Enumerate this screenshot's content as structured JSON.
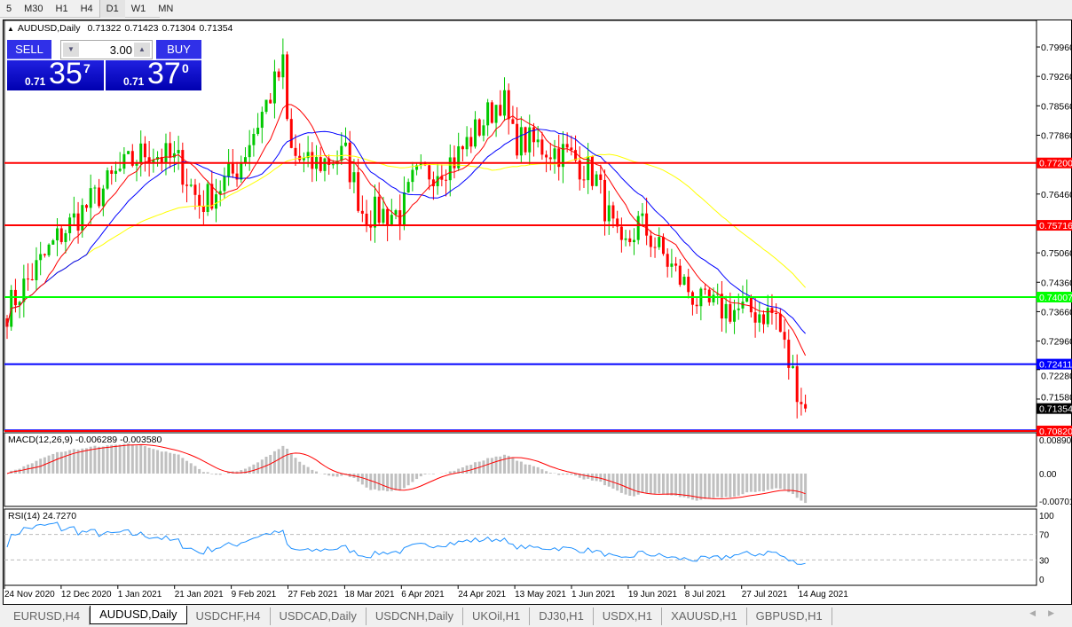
{
  "timeframes": [
    "5",
    "M30",
    "H1",
    "H4",
    "D1",
    "W1",
    "MN"
  ],
  "active_timeframe": "D1",
  "header": {
    "symbol": "AUDUSD,Daily",
    "open": "0.71322",
    "high": "0.71423",
    "low": "0.71304",
    "close": "0.71354"
  },
  "trade_panel": {
    "sell_label": "SELL",
    "buy_label": "BUY",
    "lot": "3.00",
    "sell_small": "0.71",
    "sell_big": "35",
    "sell_pip": "7",
    "buy_small": "0.71",
    "buy_big": "37",
    "buy_pip": "0"
  },
  "colors": {
    "bull": "#00c800",
    "bear": "#ff0000",
    "ma_fast": "#ff0000",
    "ma_mid": "#0000ff",
    "ma_slow": "#ffff00",
    "macd_hist": "#c0c0c0",
    "macd_signal": "#ff0000",
    "rsi": "#1e90ff"
  },
  "chart_data": {
    "type": "candlestick",
    "price_axis_ticks": [
      "0.79960",
      "0.79260",
      "0.78560",
      "0.77860",
      "0.76460",
      "0.75060",
      "0.74360",
      "0.73660",
      "0.72960",
      "0.72280",
      "0.71580"
    ],
    "ylim": [
      0.7082,
      0.7996
    ],
    "date_ticks": [
      "24 Nov 2020",
      "12 Dec 2020",
      "1 Jan 2021",
      "21 Jan 2021",
      "9 Feb 2021",
      "27 Feb 2021",
      "18 Mar 2021",
      "6 Apr 2021",
      "24 Apr 2021",
      "13 May 2021",
      "1 Jun 2021",
      "19 Jun 2021",
      "8 Jul 2021",
      "27 Jul 2021",
      "14 Aug 2021"
    ],
    "approx_close_path": [
      [
        "24 Nov 2020",
        0.737
      ],
      [
        "12 Dec 2020",
        0.755
      ],
      [
        "1 Jan 2021",
        0.77
      ],
      [
        "10 Jan 2021",
        0.775
      ],
      [
        "21 Jan 2021",
        0.772
      ],
      [
        "28 Jan 2021",
        0.762
      ],
      [
        "9 Feb 2021",
        0.77
      ],
      [
        "25 Feb 2021",
        0.795
      ],
      [
        "27 Feb 2021",
        0.775
      ],
      [
        "5 Mar 2021",
        0.771
      ],
      [
        "18 Mar 2021",
        0.774
      ],
      [
        "24 Mar 2021",
        0.76
      ],
      [
        "6 Apr 2021",
        0.76
      ],
      [
        "10 Apr 2021",
        0.768
      ],
      [
        "24 Apr 2021",
        0.773
      ],
      [
        "10 May 2021",
        0.788
      ],
      [
        "13 May 2021",
        0.778
      ],
      [
        "1 Jun 2021",
        0.774
      ],
      [
        "10 Jun 2021",
        0.769
      ],
      [
        "19 Jun 2021",
        0.75
      ],
      [
        "25 Jun 2021",
        0.758
      ],
      [
        "8 Jul 2021",
        0.745
      ],
      [
        "16 Jul 2021",
        0.738
      ],
      [
        "27 Jul 2021",
        0.737
      ],
      [
        "10 Aug 2021",
        0.736
      ],
      [
        "14 Aug 2021",
        0.725
      ],
      [
        "20 Aug 2021",
        0.7135
      ]
    ],
    "current_price": "0.71354",
    "levels": [
      {
        "price": "0.77200",
        "color": "#ff0000"
      },
      {
        "price": "0.75716",
        "color": "#ff0000"
      },
      {
        "price": "0.74007",
        "color": "#00ff00"
      },
      {
        "price": "0.72411",
        "color": "#0000ff"
      },
      {
        "price": "0.70836",
        "color": "#0000ff"
      },
      {
        "price": "0.70820",
        "color": "#ff0000"
      }
    ],
    "macd": {
      "label": "MACD(12,26,9) -0.006289 -0.003580",
      "ticks": [
        "0.008904",
        "0.00",
        "-0.00701"
      ]
    },
    "rsi": {
      "label": "RSI(14) 24.7270",
      "ticks": [
        "100",
        "70",
        "30",
        "0"
      ],
      "levels": [
        70,
        30
      ]
    }
  },
  "tabs": [
    "EURUSD,H4",
    "AUDUSD,Daily",
    "USDCHF,H4",
    "USDCAD,Daily",
    "USDCNH,Daily",
    "UKOil,H1",
    "DJ30,H1",
    "USDX,H1",
    "XAUUSD,H1",
    "GBPUSD,H1"
  ],
  "active_tab": "AUDUSD,Daily"
}
